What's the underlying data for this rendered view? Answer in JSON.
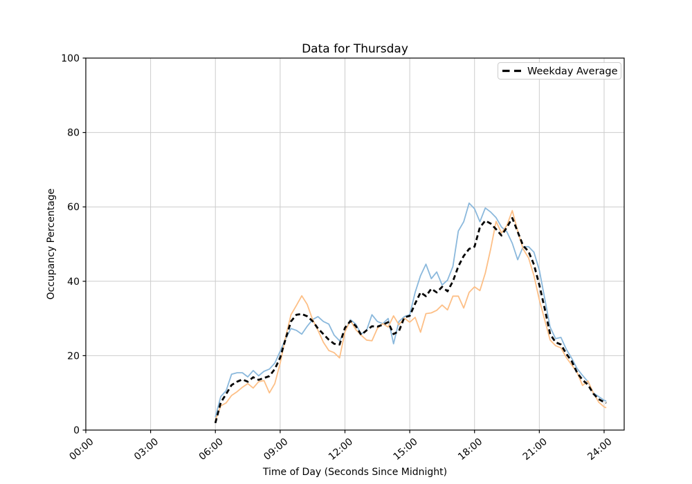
{
  "figure": {
    "background": "#ffffff",
    "spine_color": "#000000"
  },
  "chart_data": {
    "type": "line",
    "title": "Data for Thursday",
    "xlabel": "Time of Day (Seconds Since Midnight)",
    "ylabel": "Occupancy Percentage",
    "grid": true,
    "grid_color": "#cccccc",
    "xlim_hours": [
      0,
      24.93
    ],
    "ylim": [
      0,
      100
    ],
    "yticks": [
      0,
      20,
      40,
      60,
      80,
      100
    ],
    "xticks": [
      {
        "hour": 0,
        "label": "00:00"
      },
      {
        "hour": 3,
        "label": "03:00"
      },
      {
        "hour": 6,
        "label": "06:00"
      },
      {
        "hour": 9,
        "label": "09:00"
      },
      {
        "hour": 12,
        "label": "12:00"
      },
      {
        "hour": 15,
        "label": "15:00"
      },
      {
        "hour": 18,
        "label": "18:00"
      },
      {
        "hour": 21,
        "label": "21:00"
      },
      {
        "hour": 24,
        "label": "24:00"
      }
    ],
    "legend": {
      "location": "upper right",
      "entries": [
        "Weekday Average"
      ]
    },
    "x_hours": [
      6.0,
      6.25,
      6.5,
      6.75,
      7.0,
      7.25,
      7.5,
      7.75,
      8.0,
      8.25,
      8.5,
      8.75,
      9.0,
      9.25,
      9.5,
      9.75,
      10.0,
      10.25,
      10.5,
      10.75,
      11.0,
      11.25,
      11.5,
      11.75,
      12.0,
      12.25,
      12.5,
      12.75,
      13.0,
      13.25,
      13.5,
      13.75,
      14.0,
      14.25,
      14.5,
      14.75,
      15.0,
      15.25,
      15.5,
      15.75,
      16.0,
      16.25,
      16.5,
      16.75,
      17.0,
      17.25,
      17.5,
      17.75,
      18.0,
      18.25,
      18.5,
      18.75,
      19.0,
      19.25,
      19.5,
      19.75,
      20.0,
      20.25,
      20.5,
      20.75,
      21.0,
      21.25,
      21.5,
      21.75,
      22.0,
      22.25,
      22.5,
      22.75,
      23.0,
      23.25,
      23.5,
      23.75,
      24.0,
      24.1
    ],
    "series": [
      {
        "name": "thursday-occupancy-a",
        "color": "#8ab8dc",
        "style": "solid",
        "width": 1.8,
        "values": [
          3.5,
          9,
          10.6,
          15,
          15.4,
          15.4,
          14.3,
          16,
          14.6,
          15.8,
          16.4,
          18,
          21.2,
          24.5,
          27.3,
          26.8,
          25.8,
          27.9,
          29.7,
          30.5,
          29.2,
          28.5,
          25.5,
          24,
          26.5,
          29.7,
          28.5,
          25.8,
          26.8,
          31,
          29.2,
          28.6,
          30,
          23.2,
          29.2,
          30.5,
          31,
          37,
          41.5,
          44.6,
          40.7,
          42.5,
          39,
          40.3,
          44,
          53.5,
          56,
          61,
          59.5,
          56,
          59.7,
          58.6,
          57.1,
          54.6,
          53.3,
          50.2,
          45.8,
          49.3,
          49.3,
          47.8,
          43,
          35.3,
          27.7,
          24.6,
          24.9,
          21.7,
          19.3,
          16.5,
          14.7,
          13,
          10,
          9,
          8,
          7.8
        ]
      },
      {
        "name": "thursday-occupancy-b",
        "color": "#fdbf86",
        "style": "solid",
        "width": 1.8,
        "values": [
          2.6,
          6.5,
          7.3,
          9.3,
          10.3,
          11.5,
          12.5,
          11.3,
          13,
          13.3,
          10,
          12.5,
          18,
          25,
          31,
          33.5,
          36.1,
          33.8,
          29.7,
          26.8,
          23.6,
          21.4,
          20.8,
          19.4,
          26.4,
          29.5,
          27,
          25.5,
          24.2,
          24,
          27.3,
          28.6,
          27.7,
          30.7,
          28.3,
          30.1,
          29,
          30.3,
          26.3,
          31.3,
          31.5,
          32.2,
          33.6,
          32.3,
          36,
          36,
          32.8,
          37,
          38.5,
          37.5,
          42.2,
          48.7,
          56.1,
          53,
          55,
          59,
          53.5,
          48.7,
          46.3,
          41.5,
          35,
          29.6,
          24.2,
          22.7,
          22.1,
          19.5,
          17.5,
          15.5,
          12,
          13.2,
          10,
          7.5,
          6.2,
          6
        ]
      },
      {
        "name": "weekday-average",
        "label": "Weekday Average",
        "color": "#000000",
        "style": "dashed",
        "width": 2.8,
        "values": [
          1.9,
          7.4,
          9.7,
          12.1,
          13,
          13.6,
          13,
          14.2,
          13.5,
          14,
          14.5,
          16.4,
          19.5,
          24.5,
          29.2,
          31,
          31.2,
          30.6,
          29.3,
          27.3,
          25.8,
          24.3,
          23.2,
          23,
          27.5,
          29.3,
          28,
          25.6,
          26.8,
          27.9,
          27.8,
          28.3,
          29,
          25.8,
          26.6,
          30.3,
          30.7,
          34,
          37,
          36,
          38,
          37,
          38.5,
          37.3,
          40,
          44,
          46.8,
          48.7,
          49.3,
          54.5,
          56.3,
          55.5,
          54,
          52.3,
          54.5,
          57,
          53.3,
          49.6,
          48,
          44.5,
          39,
          32.6,
          25.8,
          23.6,
          23,
          20.5,
          18.5,
          15.4,
          13.5,
          12.2,
          9.8,
          8.3,
          7.5,
          7.3
        ]
      }
    ]
  }
}
